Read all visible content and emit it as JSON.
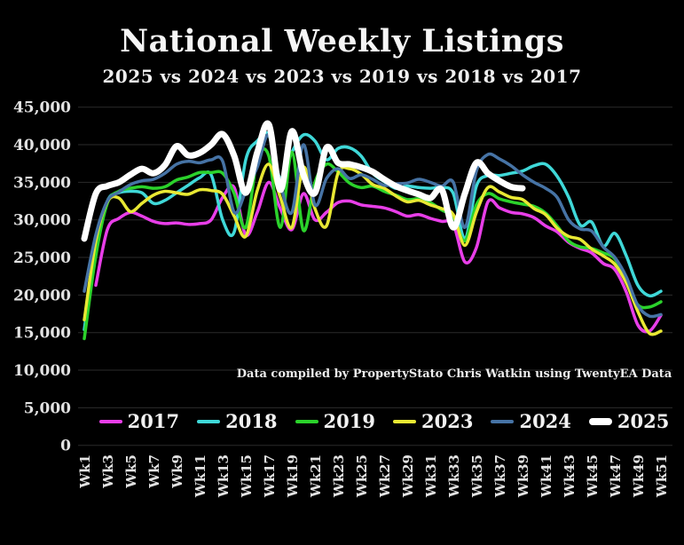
{
  "page": {
    "background": "#000000"
  },
  "header": {
    "title": "National Weekly Listings",
    "subtitle": "2025 vs 2024 vs 2023 vs 2019 vs 2018 vs 2017"
  },
  "annotation": "Data compiled by PropertyStato Chris Watkin using TwentyEA Data",
  "chart_data": {
    "type": "line",
    "title": "National Weekly Listings",
    "subtitle": "2025 vs 2024 vs 2023 vs 2019 vs 2018 vs 2017",
    "xlabel": "",
    "ylabel": "",
    "x_unit": "week",
    "weeks_range": [
      1,
      51
    ],
    "ylim": [
      0,
      45000
    ],
    "grid": "horizontal",
    "grid_color": "#2b2b2b",
    "axis_text_color": "#e2e2e2",
    "y_tick_values": [
      0,
      5000,
      10000,
      15000,
      20000,
      25000,
      30000,
      35000,
      40000,
      45000
    ],
    "y_tick_labels": [
      "0",
      "5,000",
      "10,000",
      "15,000",
      "20,000",
      "25,000",
      "30,000",
      "35,000",
      "40,000",
      "45,000"
    ],
    "x_tick_weeks": [
      1,
      3,
      5,
      7,
      9,
      11,
      13,
      15,
      17,
      19,
      21,
      23,
      25,
      27,
      29,
      31,
      33,
      35,
      37,
      39,
      41,
      43,
      45,
      47,
      49,
      51
    ],
    "x_tick_labels": [
      "Wk1",
      "Wk3",
      "Wk5",
      "Wk7",
      "Wk9",
      "Wk11",
      "Wk13",
      "Wk15",
      "Wk17",
      "Wk19",
      "Wk21",
      "Wk23",
      "Wk25",
      "Wk27",
      "Wk29",
      "Wk31",
      "Wk33",
      "Wk35",
      "Wk37",
      "Wk39",
      "Wk41",
      "Wk43",
      "Wk45",
      "Wk47",
      "Wk49",
      "Wk51"
    ],
    "legend_position": "bottom",
    "series": [
      {
        "name": "2017",
        "color": "#e83ee8",
        "line_width": 3.5,
        "values": [
          null,
          21300,
          28700,
          30200,
          31000,
          30500,
          29800,
          29500,
          29600,
          29400,
          29500,
          30000,
          33000,
          34300,
          28000,
          31000,
          35000,
          31500,
          28700,
          33500,
          30000,
          31000,
          32300,
          32500,
          32000,
          31800,
          31600,
          31100,
          30500,
          30700,
          30200,
          29800,
          29400,
          24400,
          26300,
          32400,
          31600,
          31000,
          30800,
          30300,
          29200,
          28400,
          27000,
          26200,
          25600,
          24200,
          23400,
          20400,
          16000,
          15200,
          17300
        ]
      },
      {
        "name": "2018",
        "color": "#3fd8d8",
        "line_width": 3.5,
        "values": [
          15400,
          26400,
          32500,
          33600,
          33800,
          33600,
          32200,
          32600,
          33600,
          34600,
          35600,
          36000,
          30000,
          28400,
          38000,
          40500,
          41300,
          35500,
          39000,
          41300,
          40500,
          38000,
          39500,
          39600,
          38500,
          36200,
          35100,
          34200,
          34500,
          34300,
          34200,
          34300,
          33500,
          27500,
          34500,
          35900,
          35900,
          36200,
          36500,
          37200,
          37400,
          35800,
          33000,
          29300,
          29700,
          26500,
          28200,
          25200,
          21300,
          19900,
          20500
        ]
      },
      {
        "name": "2019",
        "color": "#2bd22b",
        "line_width": 3.5,
        "values": [
          14200,
          25200,
          32200,
          33800,
          34200,
          34400,
          34200,
          34400,
          35300,
          35700,
          36300,
          36300,
          36200,
          33500,
          29000,
          38000,
          38500,
          29000,
          39000,
          28600,
          35000,
          37400,
          36400,
          34900,
          34300,
          34500,
          33800,
          33300,
          32700,
          32800,
          32300,
          31300,
          30400,
          27200,
          32000,
          33500,
          32800,
          32400,
          32100,
          31800,
          30900,
          29200,
          27200,
          26400,
          26200,
          25600,
          24800,
          21600,
          18700,
          18400,
          19100
        ]
      },
      {
        "name": "2023",
        "color": "#e8e833",
        "line_width": 3.5,
        "values": [
          16700,
          27200,
          32400,
          32900,
          31100,
          32200,
          33300,
          33800,
          33600,
          33400,
          34000,
          33900,
          33400,
          30500,
          27800,
          33900,
          37400,
          33000,
          29000,
          37000,
          31500,
          29200,
          36200,
          36800,
          36100,
          34700,
          34200,
          33200,
          32400,
          32600,
          32000,
          31500,
          30700,
          26600,
          31000,
          34300,
          33700,
          33000,
          32700,
          31500,
          30700,
          28900,
          27800,
          27400,
          26100,
          25200,
          24100,
          21600,
          17800,
          14900,
          15200
        ]
      },
      {
        "name": "2024",
        "color": "#4673a5",
        "line_width": 3.5,
        "values": [
          20500,
          28000,
          32500,
          33700,
          34700,
          35200,
          35400,
          36200,
          37400,
          37800,
          37600,
          38000,
          37800,
          31000,
          33800,
          37000,
          41300,
          34800,
          31000,
          40000,
          32000,
          35500,
          36800,
          35500,
          36000,
          35400,
          34600,
          34800,
          34900,
          35400,
          35000,
          34500,
          35000,
          29000,
          36500,
          38700,
          38100,
          37200,
          36000,
          35000,
          34200,
          33000,
          30000,
          28800,
          28500,
          26400,
          25000,
          22400,
          18600,
          17200,
          17400
        ]
      },
      {
        "name": "2025",
        "color": "#ffffff",
        "line_width": 7,
        "values": [
          27500,
          33500,
          34500,
          35000,
          36000,
          36800,
          36200,
          37300,
          39800,
          38600,
          38900,
          40000,
          41400,
          38500,
          33600,
          39000,
          42700,
          34000,
          41800,
          36000,
          33600,
          39600,
          37600,
          37400,
          37000,
          36400,
          35400,
          34500,
          33900,
          33400,
          32900,
          34000,
          29000,
          33500,
          37600,
          36200,
          35200,
          34400,
          34200,
          null,
          null,
          null,
          null,
          null,
          null,
          null,
          null,
          null,
          null,
          null,
          null
        ]
      }
    ]
  }
}
